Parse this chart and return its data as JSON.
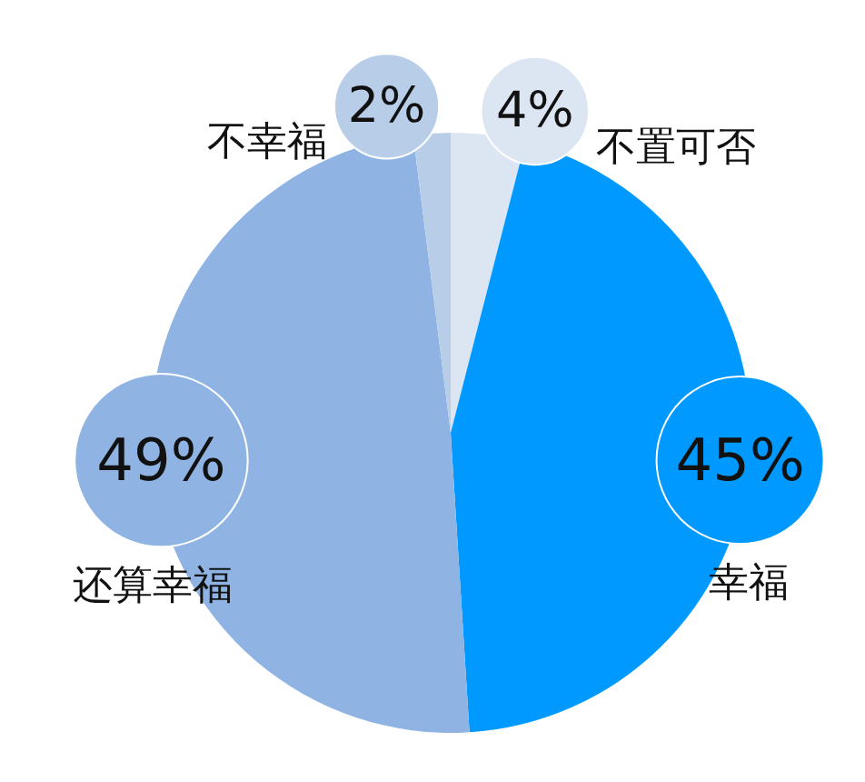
{
  "chart_data": {
    "type": "pie",
    "categories": [
      "不置可否",
      "幸福",
      "还算幸福",
      "不幸福"
    ],
    "values": [
      4,
      45,
      49,
      2
    ],
    "colors": [
      "#dce6f2",
      "#0099ff",
      "#8fb4e3",
      "#b8cde8"
    ],
    "value_labels": [
      "4%",
      "45%",
      "49%",
      "2%"
    ],
    "legend": false
  }
}
